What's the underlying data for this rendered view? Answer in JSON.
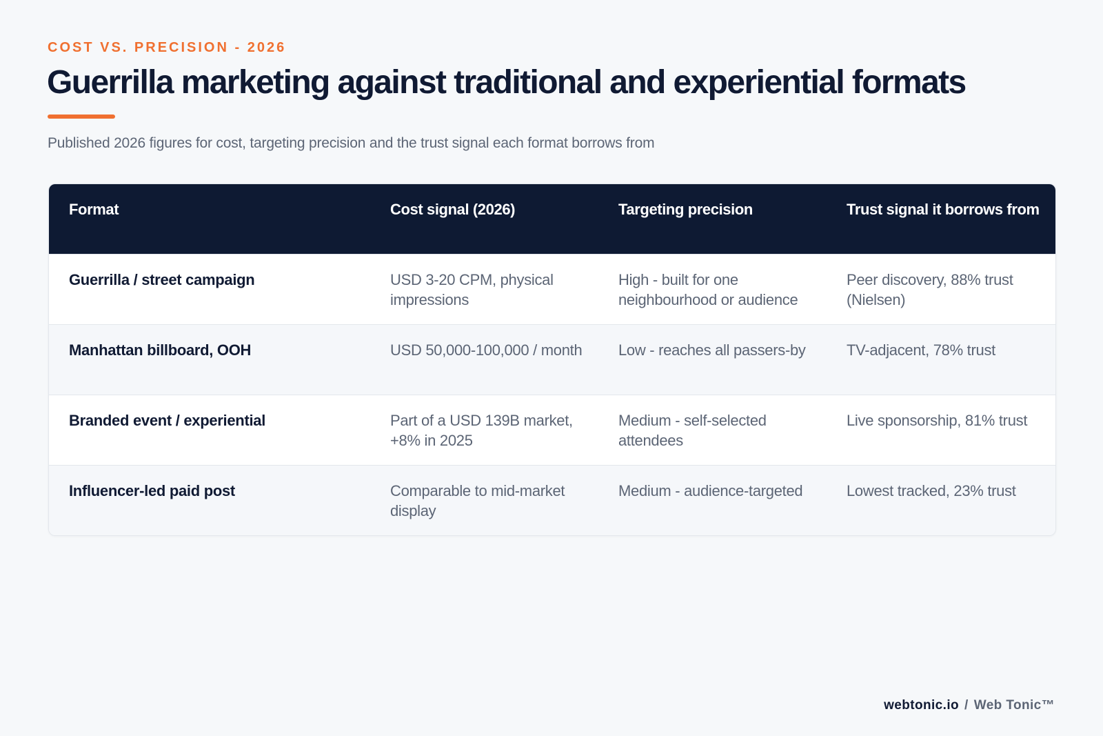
{
  "header": {
    "eyebrow": "COST VS. PRECISION - 2026",
    "title": "Guerrilla marketing against traditional and experiential formats",
    "subtitle": "Published 2026 figures for cost, targeting precision and the trust signal each format borrows from"
  },
  "table": {
    "columns": [
      "Format",
      "Cost signal (2026)",
      "Targeting precision",
      "Trust signal it borrows from"
    ],
    "rows": [
      [
        "Guerrilla / street campaign",
        "USD 3-20 CPM, physical impressions",
        "High - built for one neighbourhood or audience",
        "Peer discovery, 88% trust (Nielsen)"
      ],
      [
        "Manhattan billboard, OOH",
        "USD 50,000-100,000 / month",
        "Low - reaches all passers-by",
        "TV-adjacent, 78% trust"
      ],
      [
        "Branded event / experiential",
        "Part of a USD 139B market, +8% in 2025",
        "Medium - self-selected attendees",
        "Live sponsorship, 81% trust"
      ],
      [
        "Influencer-led paid post",
        "Comparable to mid-market display",
        "Medium - audience-targeted",
        "Lowest tracked, 23% trust"
      ]
    ]
  },
  "footer": {
    "site": "webtonic.io",
    "separator": "/",
    "brand": "Web Tonic™"
  },
  "colors": {
    "accent": "#f07030",
    "navy": "#0e1a33",
    "muted_text": "#5c6575",
    "background": "#f6f8fa"
  }
}
